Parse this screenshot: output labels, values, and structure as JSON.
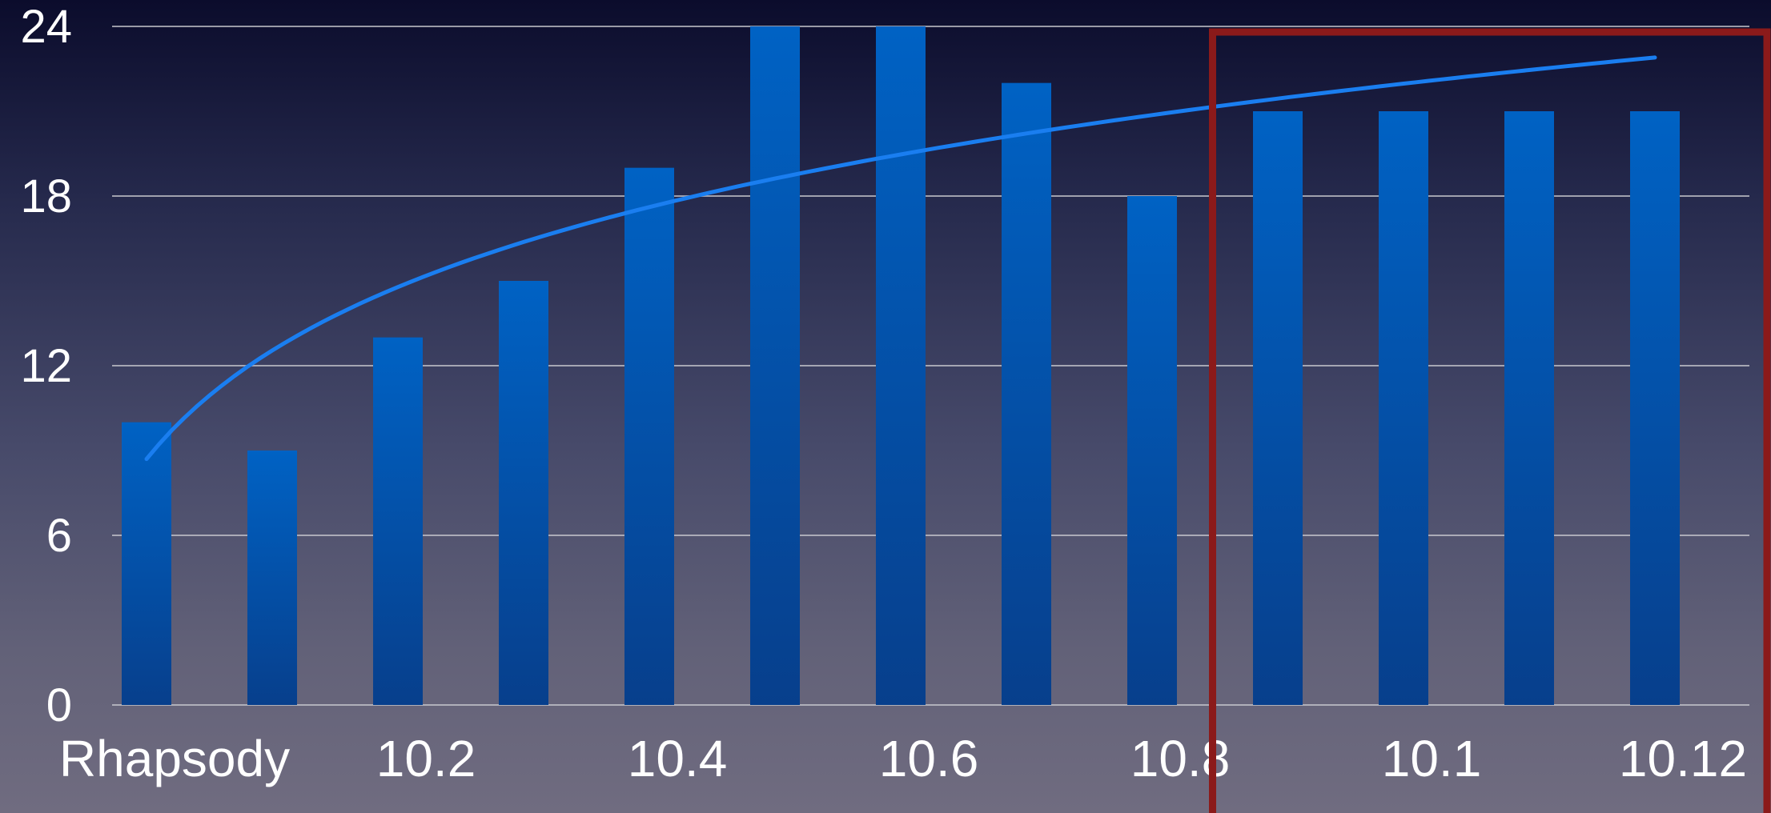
{
  "chart_data": {
    "type": "bar",
    "categories": [
      "Rhapsody",
      "",
      "10.2",
      "",
      "10.4",
      "",
      "10.6",
      "",
      "10.8",
      "",
      "10.1",
      "",
      "10.12"
    ],
    "values": [
      10,
      9,
      13,
      15,
      19,
      24,
      24,
      22,
      18,
      21,
      21,
      21,
      21
    ],
    "trendline": {
      "type": "logarithmic",
      "start_value": 8.7,
      "end_value": 22.9
    },
    "ylim": [
      0,
      24
    ],
    "yticks": [
      "0",
      "6",
      "12",
      "18",
      "24"
    ],
    "grid": true,
    "highlight": {
      "first_category_index": 9,
      "last_category_index": 12
    },
    "colors": {
      "bar_top": "#0062c4",
      "bar_bottom": "#073f8c",
      "trendline": "#1a7ef0",
      "highlight_border": "#8b1a1a"
    }
  }
}
